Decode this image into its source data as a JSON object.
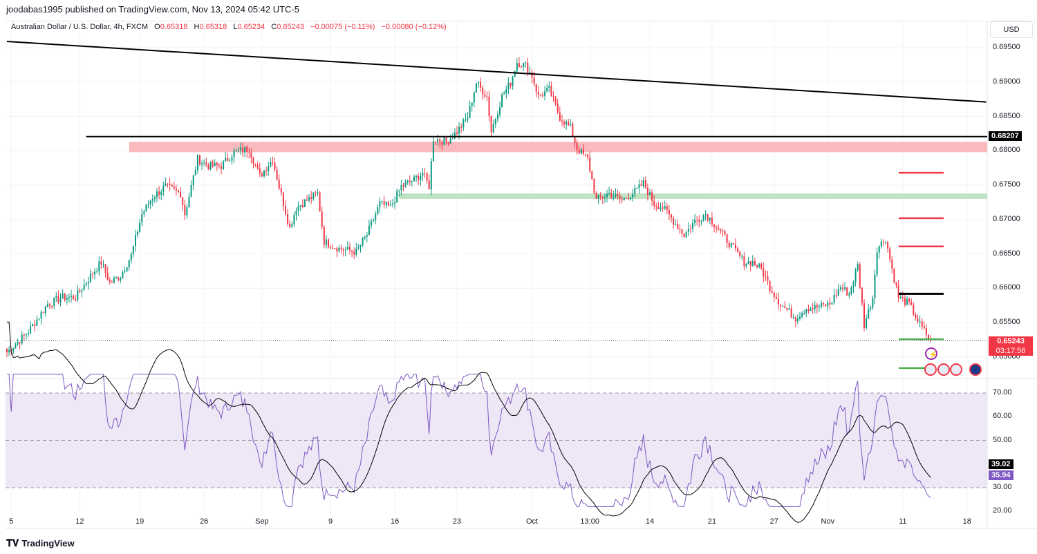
{
  "publisher_line": "joodabas1995 published on TradingView.com, Nov 13, 2024 05:42 UTC-5",
  "legend": {
    "symbol": "Australian Dollar / U.S. Dollar, 4h, FXCM",
    "o_label": "O",
    "o": "0.65318",
    "h_label": "H",
    "h": "0.65318",
    "l_label": "L",
    "l": "0.65234",
    "c_label": "C",
    "c": "0.65243",
    "change": "−0.00075 (−0.11%)",
    "change2": "−0.00080 (−0.12%)"
  },
  "currency_button": "USD",
  "footer_brand": "TradingView",
  "colors": {
    "up": "#089981",
    "down": "#f23645",
    "rsi": "#7e57c2",
    "rsi_band": "#ede7f6",
    "zone_red": "#f9b9bd",
    "zone_green": "#bfe3c3"
  },
  "chart_data": {
    "type": "candlestick",
    "title": "Australian Dollar / U.S. Dollar, 4h, FXCM",
    "x_unit": "bar index (4h bars)",
    "close_keypoints": [
      [
        0,
        0.6507
      ],
      [
        10,
        0.6537
      ],
      [
        19,
        0.6577
      ],
      [
        26,
        0.6587
      ],
      [
        32,
        0.6587
      ],
      [
        39,
        0.6618
      ],
      [
        44,
        0.6638
      ],
      [
        48,
        0.6608
      ],
      [
        53,
        0.6618
      ],
      [
        58,
        0.6648
      ],
      [
        63,
        0.6708
      ],
      [
        68,
        0.6733
      ],
      [
        74,
        0.6748
      ],
      [
        81,
        0.6738
      ],
      [
        83,
        0.6708
      ],
      [
        89,
        0.6788
      ],
      [
        94,
        0.6778
      ],
      [
        100,
        0.6778
      ],
      [
        106,
        0.6798
      ],
      [
        113,
        0.6803
      ],
      [
        118,
        0.6763
      ],
      [
        124,
        0.6788
      ],
      [
        127,
        0.6748
      ],
      [
        132,
        0.6688
      ],
      [
        135,
        0.6718
      ],
      [
        140,
        0.6728
      ],
      [
        145,
        0.6738
      ],
      [
        148,
        0.6668
      ],
      [
        155,
        0.6658
      ],
      [
        163,
        0.6653
      ],
      [
        168,
        0.6678
      ],
      [
        174,
        0.6723
      ],
      [
        179,
        0.6718
      ],
      [
        184,
        0.6748
      ],
      [
        190,
        0.6758
      ],
      [
        194,
        0.6768
      ],
      [
        197,
        0.6748
      ],
      [
        199,
        0.6818
      ],
      [
        205,
        0.6813
      ],
      [
        210,
        0.6828
      ],
      [
        215,
        0.6849
      ],
      [
        219,
        0.6899
      ],
      [
        224,
        0.6879
      ],
      [
        226,
        0.6828
      ],
      [
        231,
        0.6879
      ],
      [
        235,
        0.6899
      ],
      [
        238,
        0.6929
      ],
      [
        242,
        0.6924
      ],
      [
        245,
        0.6909
      ],
      [
        248,
        0.6879
      ],
      [
        253,
        0.6889
      ],
      [
        258,
        0.6849
      ],
      [
        263,
        0.6833
      ],
      [
        266,
        0.6803
      ],
      [
        271,
        0.6788
      ],
      [
        275,
        0.6728
      ],
      [
        281,
        0.6738
      ],
      [
        287,
        0.6728
      ],
      [
        294,
        0.6743
      ],
      [
        297,
        0.6753
      ],
      [
        302,
        0.6723
      ],
      [
        306,
        0.6718
      ],
      [
        311,
        0.6698
      ],
      [
        316,
        0.6678
      ],
      [
        321,
        0.6698
      ],
      [
        326,
        0.6708
      ],
      [
        329,
        0.6698
      ],
      [
        334,
        0.6678
      ],
      [
        339,
        0.6658
      ],
      [
        344,
        0.6638
      ],
      [
        348,
        0.6638
      ],
      [
        352,
        0.6628
      ],
      [
        356,
        0.6602
      ],
      [
        361,
        0.6577
      ],
      [
        368,
        0.6557
      ],
      [
        373,
        0.6572
      ],
      [
        377,
        0.6572
      ],
      [
        384,
        0.6577
      ],
      [
        389,
        0.6602
      ],
      [
        393,
        0.6592
      ],
      [
        397,
        0.6633
      ],
      [
        400,
        0.6547
      ],
      [
        404,
        0.6587
      ],
      [
        406,
        0.6658
      ],
      [
        410,
        0.6673
      ],
      [
        413,
        0.6628
      ],
      [
        416,
        0.6587
      ],
      [
        421,
        0.6577
      ],
      [
        426,
        0.6547
      ],
      [
        431,
        0.6524
      ]
    ],
    "price_axis": {
      "ylim": [
        0.6475,
        0.696
      ],
      "ticks": [
        "0.69500",
        "0.69000",
        "0.68500",
        "0.68000",
        "0.67500",
        "0.67000",
        "0.66500",
        "0.66000",
        "0.65500",
        "0.65000"
      ]
    },
    "time_axis": {
      "ticks": [
        {
          "bar": 2,
          "label": "5"
        },
        {
          "bar": 34,
          "label": "12"
        },
        {
          "bar": 62,
          "label": "19"
        },
        {
          "bar": 92,
          "label": "26"
        },
        {
          "bar": 119,
          "label": "Sep"
        },
        {
          "bar": 151,
          "label": "9"
        },
        {
          "bar": 181,
          "label": "16"
        },
        {
          "bar": 210,
          "label": "23"
        },
        {
          "bar": 245,
          "label": "Oct"
        },
        {
          "bar": 272,
          "label": "13:00"
        },
        {
          "bar": 300,
          "label": "14"
        },
        {
          "bar": 329,
          "label": "21"
        },
        {
          "bar": 358,
          "label": "27"
        },
        {
          "bar": 383,
          "label": "Nov"
        },
        {
          "bar": 418,
          "label": "11"
        },
        {
          "bar": 448,
          "label": "18"
        }
      ]
    },
    "last_price": {
      "value": "0.65243",
      "countdown": "03:17:56"
    },
    "drawings": {
      "trendline": {
        "from": [
          0,
          0.6959
        ],
        "to": [
          457,
          0.6871
        ]
      },
      "horizontal_line": {
        "price": 0.68207,
        "label": "0.68207",
        "from_bar": 37
      },
      "resistance_zone": {
        "from_bar": 57,
        "low": 0.6798,
        "high": 0.6813
      },
      "support_zone": {
        "from_bar": 183,
        "low": 0.673,
        "high": 0.6738
      },
      "target_lines": [
        {
          "price": 0.6768,
          "color": "red"
        },
        {
          "price": 0.6702,
          "color": "red"
        },
        {
          "price": 0.6661,
          "color": "red"
        },
        {
          "price": 0.6592,
          "color": "black"
        },
        {
          "price": 0.6526,
          "color": "green"
        },
        {
          "price": 0.6484,
          "color": "green"
        }
      ]
    },
    "rsi": {
      "ylim": [
        18,
        75
      ],
      "bands": [
        70,
        30
      ],
      "middle": 50,
      "ticks": [
        "70.00",
        "60.00",
        "50.00",
        "30.00",
        "20.00"
      ],
      "rsi_value": "35.94",
      "ma_value": "39.02"
    }
  }
}
